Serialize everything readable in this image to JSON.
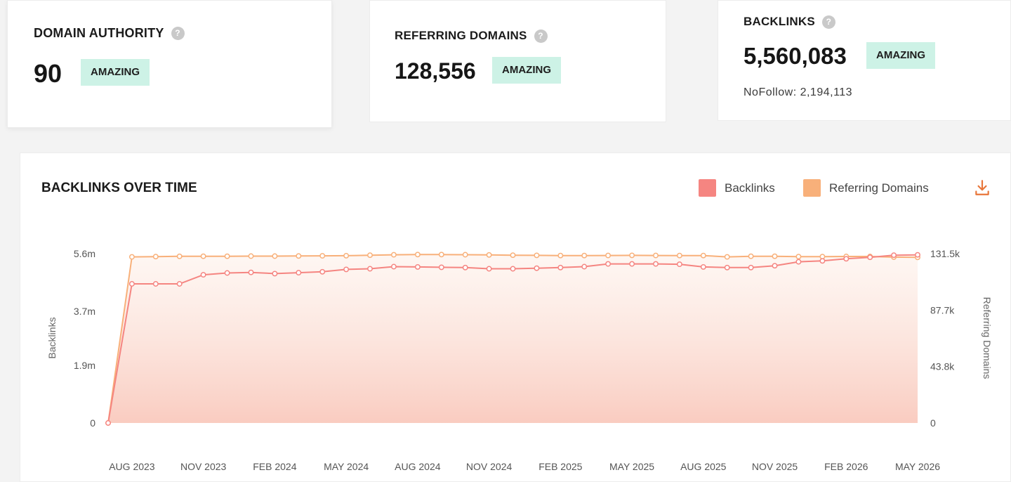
{
  "metrics": {
    "domain_authority": {
      "title": "DOMAIN AUTHORITY",
      "value": "90",
      "badge": "AMAZING"
    },
    "referring_domains": {
      "title": "REFERRING DOMAINS",
      "value": "128,556",
      "badge": "AMAZING"
    },
    "backlinks": {
      "title": "BACKLINKS",
      "value": "5,560,083",
      "badge": "AMAZING",
      "nofollow": "NoFollow: 2,194,113"
    },
    "help_icon_glyph": "?"
  },
  "colors": {
    "backlinks": "#f58581",
    "referring_domains": "#f8b07a",
    "badge_bg": "#cdf2e6",
    "download": "#e8763a"
  },
  "chart_data": {
    "type": "line",
    "title": "BACKLINKS OVER TIME",
    "x_tick_labels": [
      "AUG 2023",
      "NOV 2023",
      "FEB 2024",
      "MAY 2024",
      "AUG 2024",
      "NOV 2024",
      "FEB 2025",
      "MAY 2025",
      "AUG 2025",
      "NOV 2025",
      "FEB 2026",
      "MAY 2026"
    ],
    "x": [
      "JUL 2023",
      "AUG 2023",
      "SEP 2023",
      "OCT 2023",
      "NOV 2023",
      "DEC 2023",
      "JAN 2024",
      "FEB 2024",
      "MAR 2024",
      "APR 2024",
      "MAY 2024",
      "JUN 2024",
      "JUL 2024",
      "AUG 2024",
      "SEP 2024",
      "OCT 2024",
      "NOV 2024",
      "DEC 2024",
      "JAN 2025",
      "FEB 2025",
      "MAR 2025",
      "APR 2025",
      "MAY 2025",
      "JUN 2025",
      "JUL 2025",
      "AUG 2025",
      "SEP 2025",
      "OCT 2025",
      "NOV 2025",
      "DEC 2025",
      "JAN 2026",
      "FEB 2026",
      "MAR 2026",
      "APR 2026",
      "MAY 2026"
    ],
    "series": [
      {
        "name": "Backlinks",
        "axis": "left",
        "values": [
          0,
          4.6,
          4.6,
          4.6,
          4.9,
          4.96,
          4.98,
          4.94,
          4.97,
          5.0,
          5.08,
          5.1,
          5.17,
          5.16,
          5.15,
          5.14,
          5.1,
          5.1,
          5.12,
          5.14,
          5.17,
          5.26,
          5.26,
          5.26,
          5.25,
          5.16,
          5.14,
          5.14,
          5.2,
          5.33,
          5.36,
          5.43,
          5.48,
          5.55,
          5.56
        ]
      },
      {
        "name": "Referring Domains",
        "axis": "right",
        "values": [
          0,
          129.0,
          129.2,
          129.4,
          129.5,
          129.5,
          129.6,
          129.6,
          129.7,
          129.8,
          129.9,
          130.3,
          130.6,
          130.8,
          130.8,
          130.7,
          130.5,
          130.3,
          130.2,
          130.0,
          130.0,
          130.1,
          130.2,
          130.1,
          130.0,
          130.0,
          129.0,
          129.5,
          129.5,
          129.2,
          129.2,
          129.3,
          129.3,
          128.8,
          128.6
        ]
      }
    ],
    "left_axis": {
      "label": "Backlinks",
      "unit": "millions",
      "ylim": [
        0,
        5.6
      ],
      "ticks": [
        0,
        1.9,
        3.7,
        5.6
      ],
      "tick_labels": [
        "0",
        "1.9m",
        "3.7m",
        "5.6m"
      ]
    },
    "right_axis": {
      "label": "Referring Domains",
      "unit": "thousands",
      "ylim": [
        0,
        131.5
      ],
      "ticks": [
        0,
        43.8,
        87.7,
        131.5
      ],
      "tick_labels": [
        "0",
        "43.8k",
        "87.7k",
        "131.5k"
      ]
    },
    "legend": {
      "position": "top-right",
      "entries": [
        "Backlinks",
        "Referring Domains"
      ]
    },
    "grid": false,
    "area_fill": true
  }
}
